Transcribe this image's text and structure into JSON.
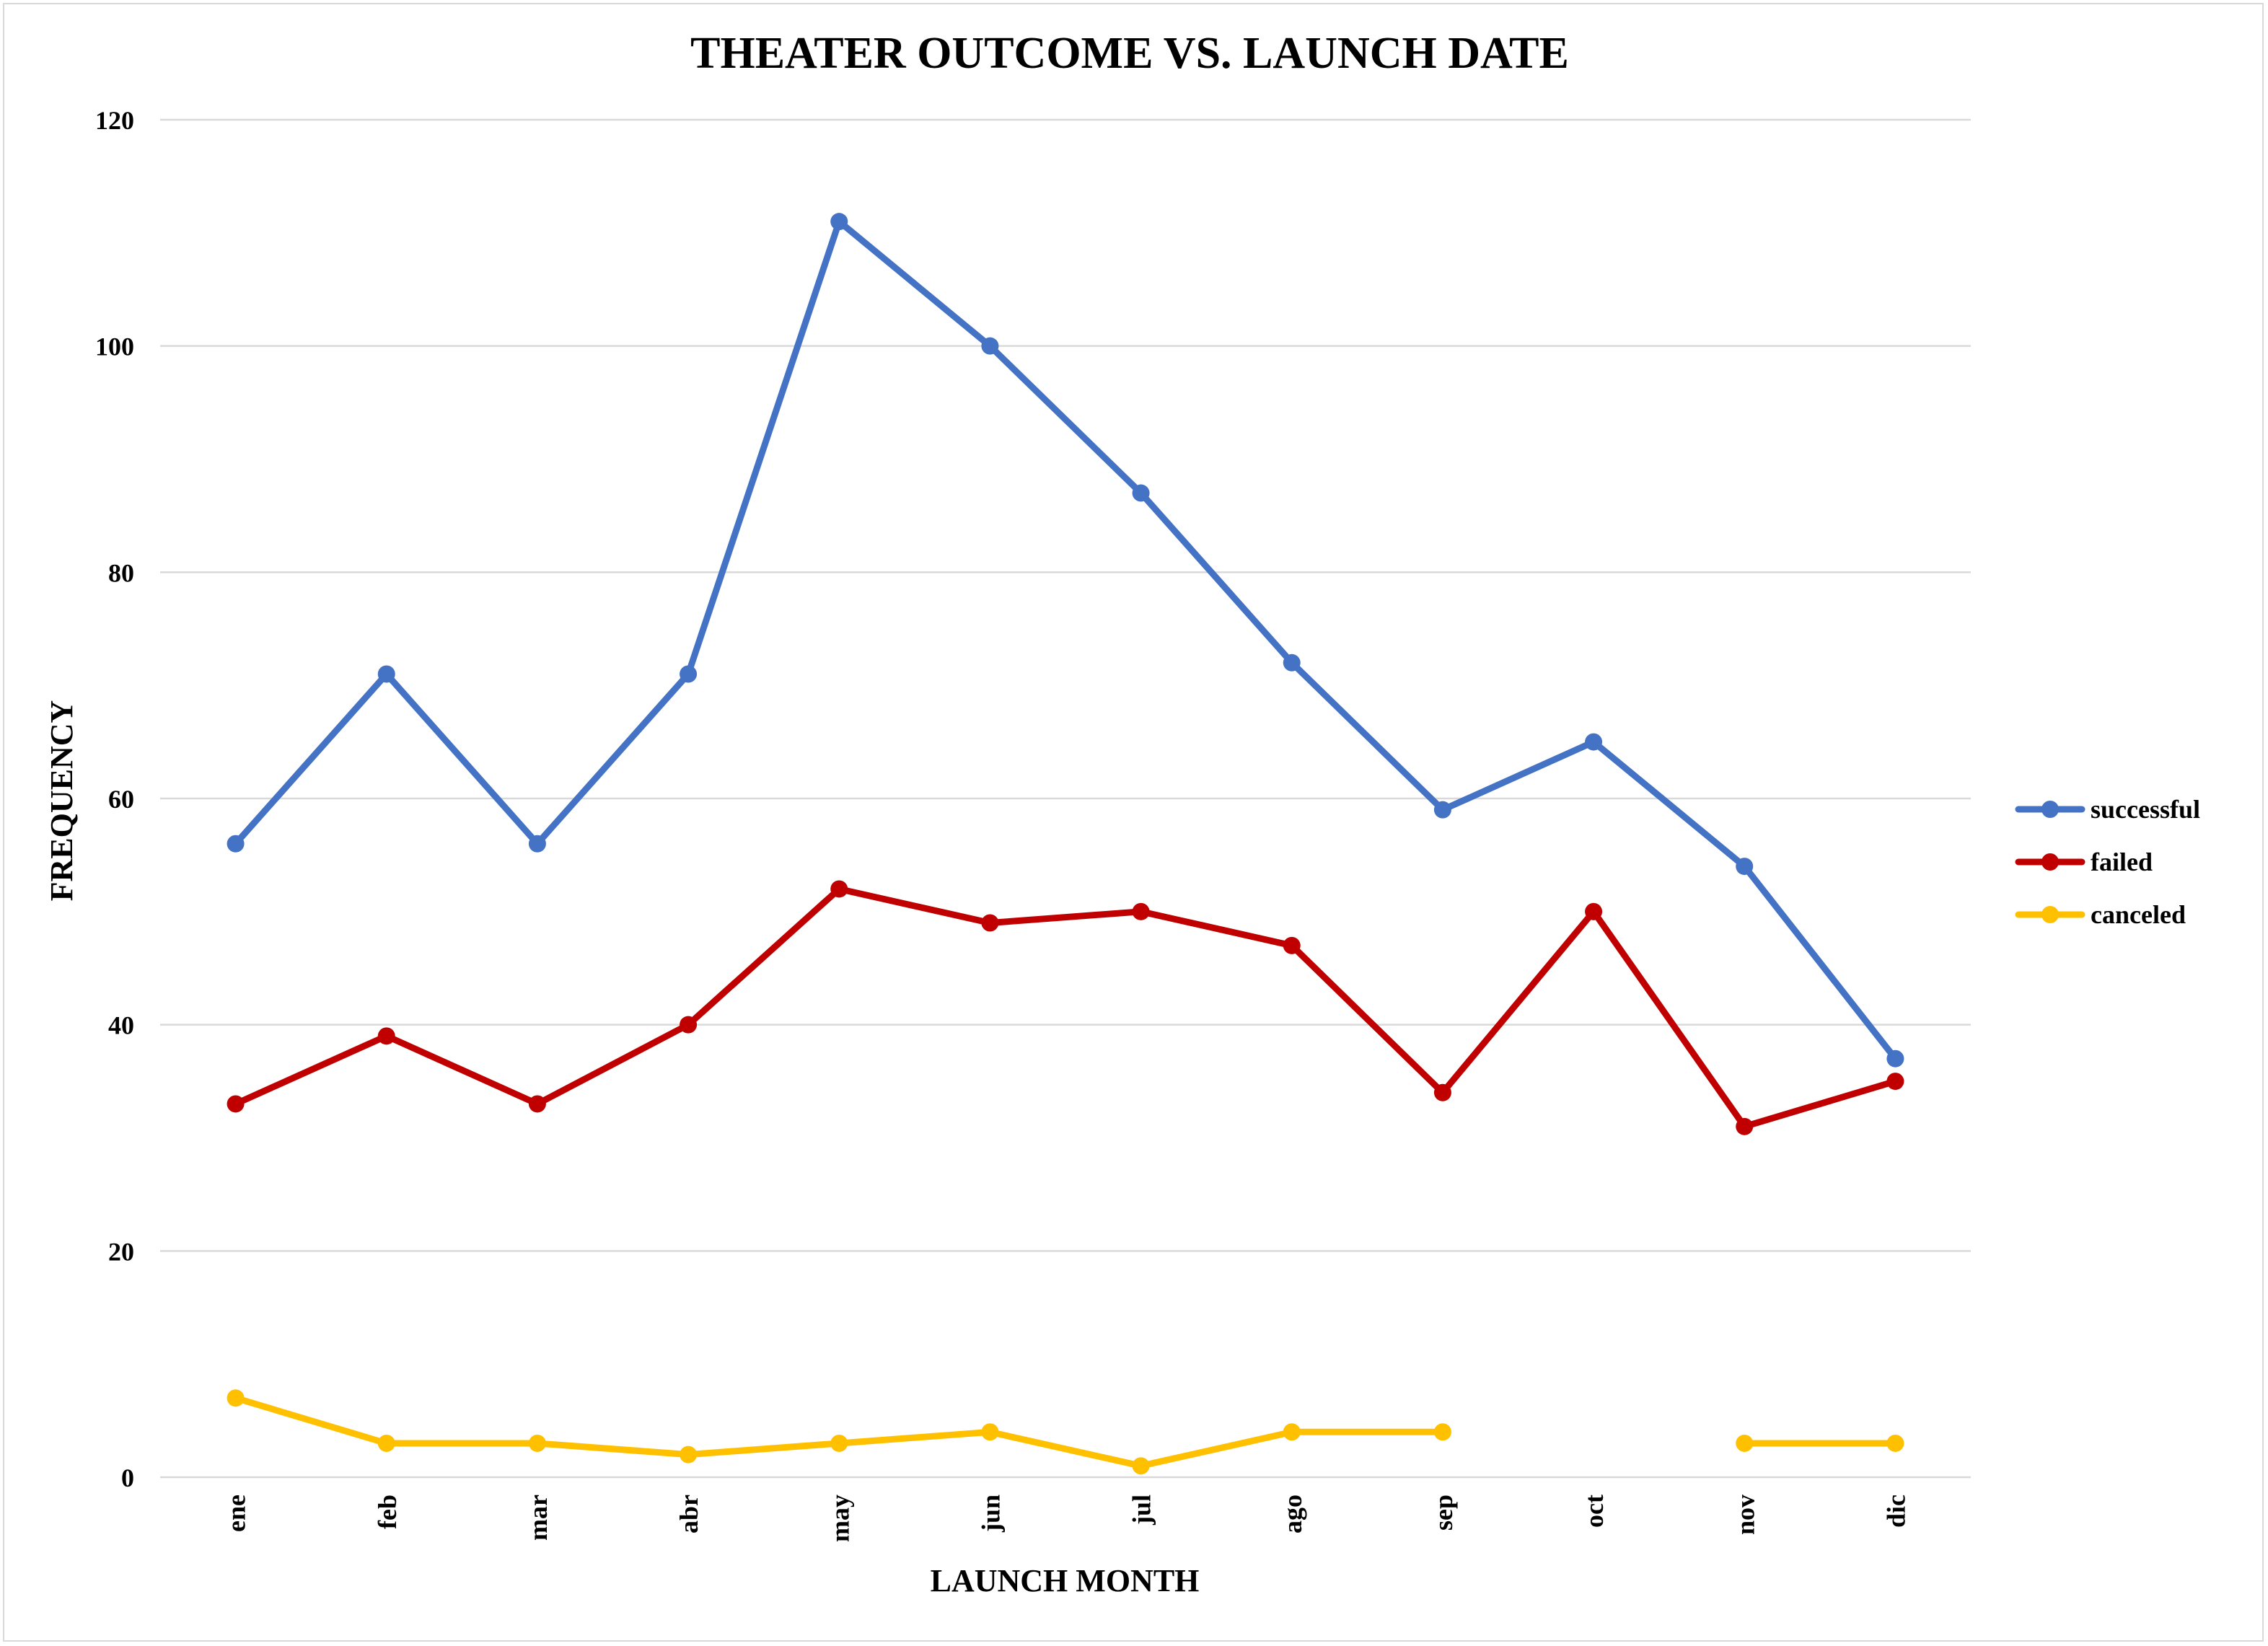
{
  "chart_data": {
    "type": "line",
    "title": "THEATER OUTCOME VS. LAUNCH DATE",
    "xlabel": "LAUNCH MONTH",
    "ylabel": "FREQUENCY",
    "ylim": [
      0,
      120
    ],
    "yticks": [
      0,
      20,
      40,
      60,
      80,
      100,
      120
    ],
    "grid": true,
    "legend_position": "right",
    "categories": [
      "ene",
      "feb",
      "mar",
      "abr",
      "may",
      "jun",
      "jul",
      "ago",
      "sep",
      "oct",
      "nov",
      "dic"
    ],
    "series": [
      {
        "name": "successful",
        "color": "#4472C4",
        "values": [
          56,
          71,
          56,
          71,
          111,
          100,
          87,
          72,
          59,
          65,
          54,
          37
        ]
      },
      {
        "name": "failed",
        "color": "#C00000",
        "values": [
          33,
          39,
          33,
          40,
          52,
          49,
          50,
          47,
          34,
          50,
          31,
          35
        ]
      },
      {
        "name": "canceled",
        "color": "#FFC000",
        "values": [
          7,
          3,
          3,
          2,
          3,
          4,
          1,
          4,
          4,
          null,
          3,
          3
        ]
      }
    ]
  }
}
